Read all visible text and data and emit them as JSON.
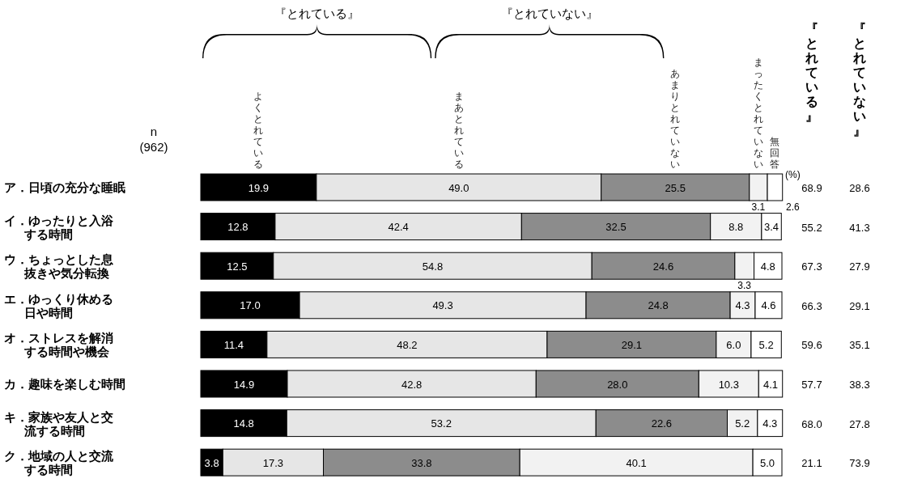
{
  "chart_data": [
    {
      "type": "bar",
      "orientation": "horizontal",
      "stacked": true,
      "legend": "top",
      "xlim": [
        0,
        100
      ],
      "categories": [
        "ア．日頃の充分な睡眠",
        "イ．ゆったりと入浴する時間",
        "ウ．ちょっとした息抜きや気分転換",
        "エ．ゆっくり休める日や時間",
        "オ．ストレスを解消する時間や機会",
        "カ．趣味を楽しむ時間",
        "キ．家族や友人と交流する時間",
        "ク．地域の人と交流する時間"
      ],
      "series": [
        {
          "name": "よくとれている",
          "color": "#000000",
          "values": [
            19.9,
            12.8,
            12.5,
            17.0,
            11.4,
            14.9,
            14.8,
            3.8
          ],
          "value_labels": [
            "19.9",
            "12.8",
            "12.5",
            "17.0",
            "11.4",
            "14.9",
            "14.8",
            "3.8"
          ]
        },
        {
          "name": "まあとれている",
          "color": "#e6e6e6",
          "values": [
            49.0,
            42.4,
            54.8,
            49.3,
            48.2,
            42.8,
            53.2,
            17.3
          ],
          "value_labels": [
            "49.0",
            "42.4",
            "54.8",
            "49.3",
            "48.2",
            "42.8",
            "53.2",
            "17.3"
          ]
        },
        {
          "name": "あまりとれていない",
          "color": "#8c8c8c",
          "values": [
            25.5,
            32.5,
            24.6,
            24.8,
            29.1,
            28.0,
            22.6,
            33.8
          ],
          "value_labels": [
            "25.5",
            "32.5",
            "24.6",
            "24.8",
            "29.1",
            "28.0",
            "22.6",
            "33.8"
          ]
        },
        {
          "name": "まったくとれていない",
          "color": "#f2f2f2",
          "values": [
            3.1,
            8.8,
            3.3,
            4.3,
            6.0,
            10.3,
            5.2,
            40.1
          ],
          "value_labels": [
            "3.1",
            "8.8",
            "3.3",
            "4.3",
            "6.0",
            "10.3",
            "5.2",
            "40.1"
          ]
        },
        {
          "name": "無回答",
          "color": "#ffffff",
          "values": [
            2.6,
            3.4,
            4.8,
            4.6,
            5.2,
            4.1,
            4.3,
            5.0
          ],
          "value_labels": [
            "2.6",
            "3.4",
            "4.8",
            "4.6",
            "5.2",
            "4.1",
            "4.3",
            "5.0"
          ]
        }
      ],
      "annotations": [
        "『とれている』",
        "『とれていない』",
        "n\n(962)",
        "(%)",
        "『とれている』",
        "『とれていない』",
        "68.9",
        "55.2",
        "67.3",
        "66.3",
        "59.6",
        "57.7",
        "68.0",
        "21.1",
        "28.6",
        "41.3",
        "27.9",
        "29.1",
        "35.1",
        "38.3",
        "27.8",
        "73.9"
      ]
    }
  ]
}
